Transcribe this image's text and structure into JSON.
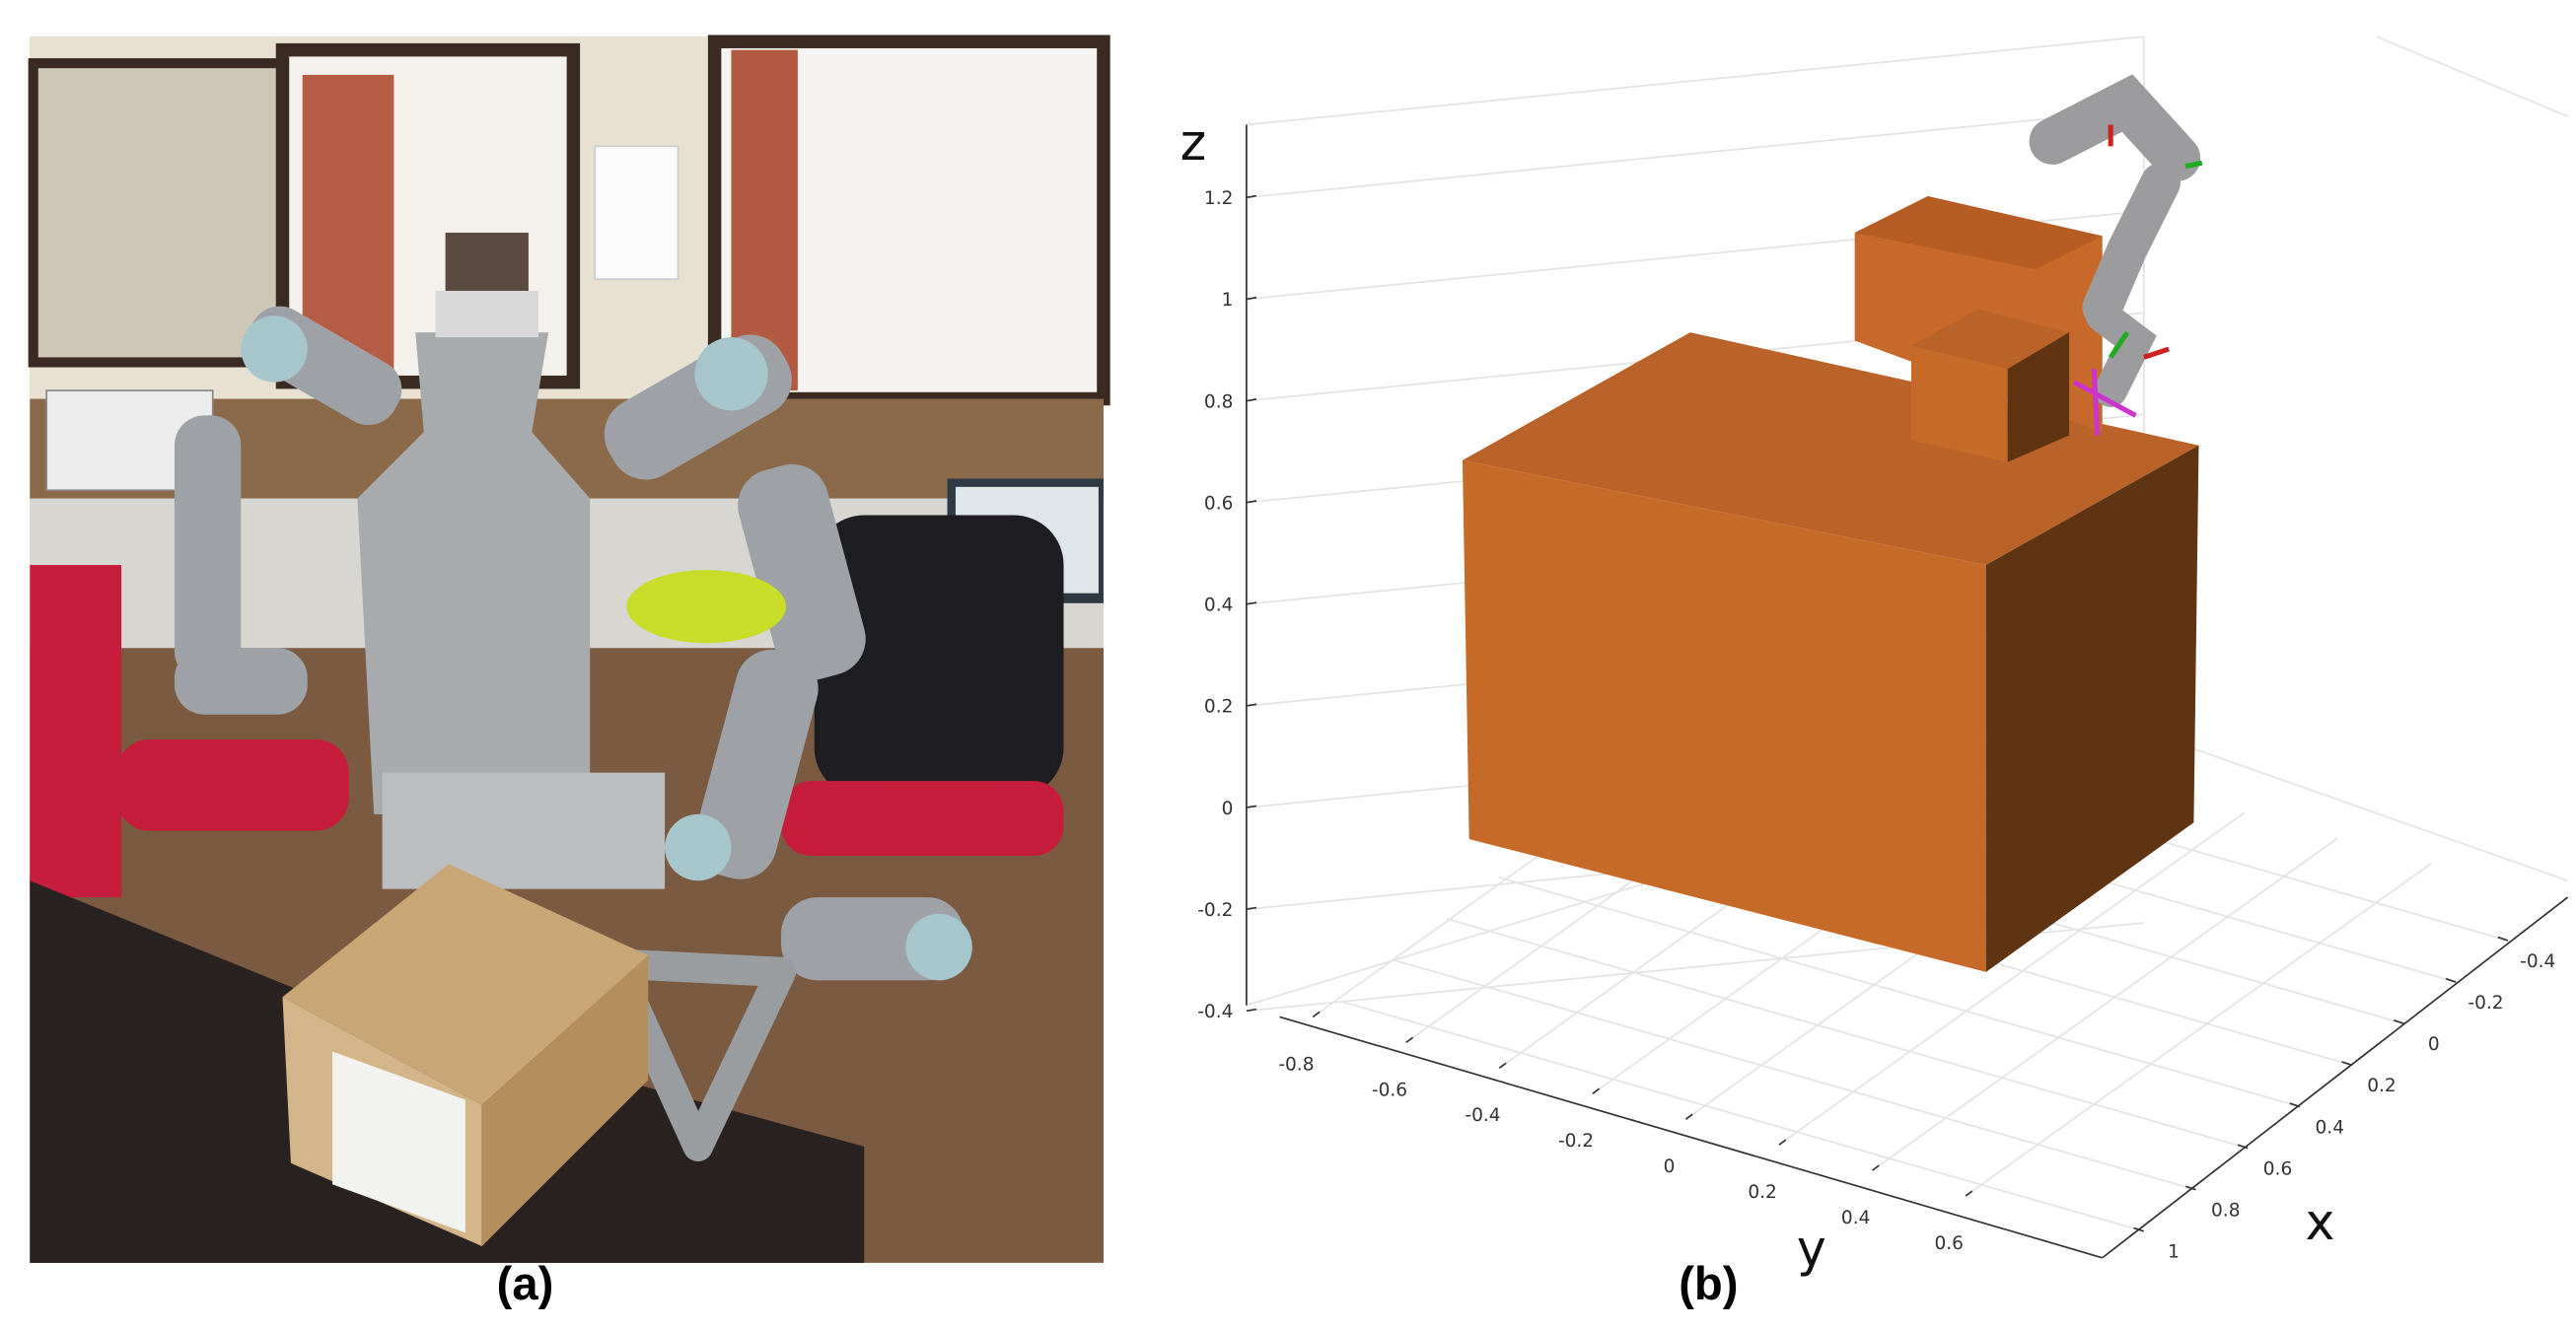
{
  "panels": [
    {
      "caption": "(a)"
    },
    {
      "caption": "(b)",
      "axes": {
        "z": {
          "label": "z",
          "ticks": [
            1.2,
            1,
            0.8,
            0.6,
            0.4,
            0.2,
            0,
            -0.2,
            -0.4
          ]
        },
        "y": {
          "label": "y",
          "ticks": [
            -0.8,
            -0.6,
            -0.4,
            -0.2,
            0,
            0.2,
            0.4,
            0.6
          ]
        },
        "x": {
          "label": "x",
          "ticks": [
            -0.4,
            -0.2,
            0,
            0.2,
            0.4,
            0.6,
            0.8,
            1
          ]
        }
      }
    }
  ]
}
